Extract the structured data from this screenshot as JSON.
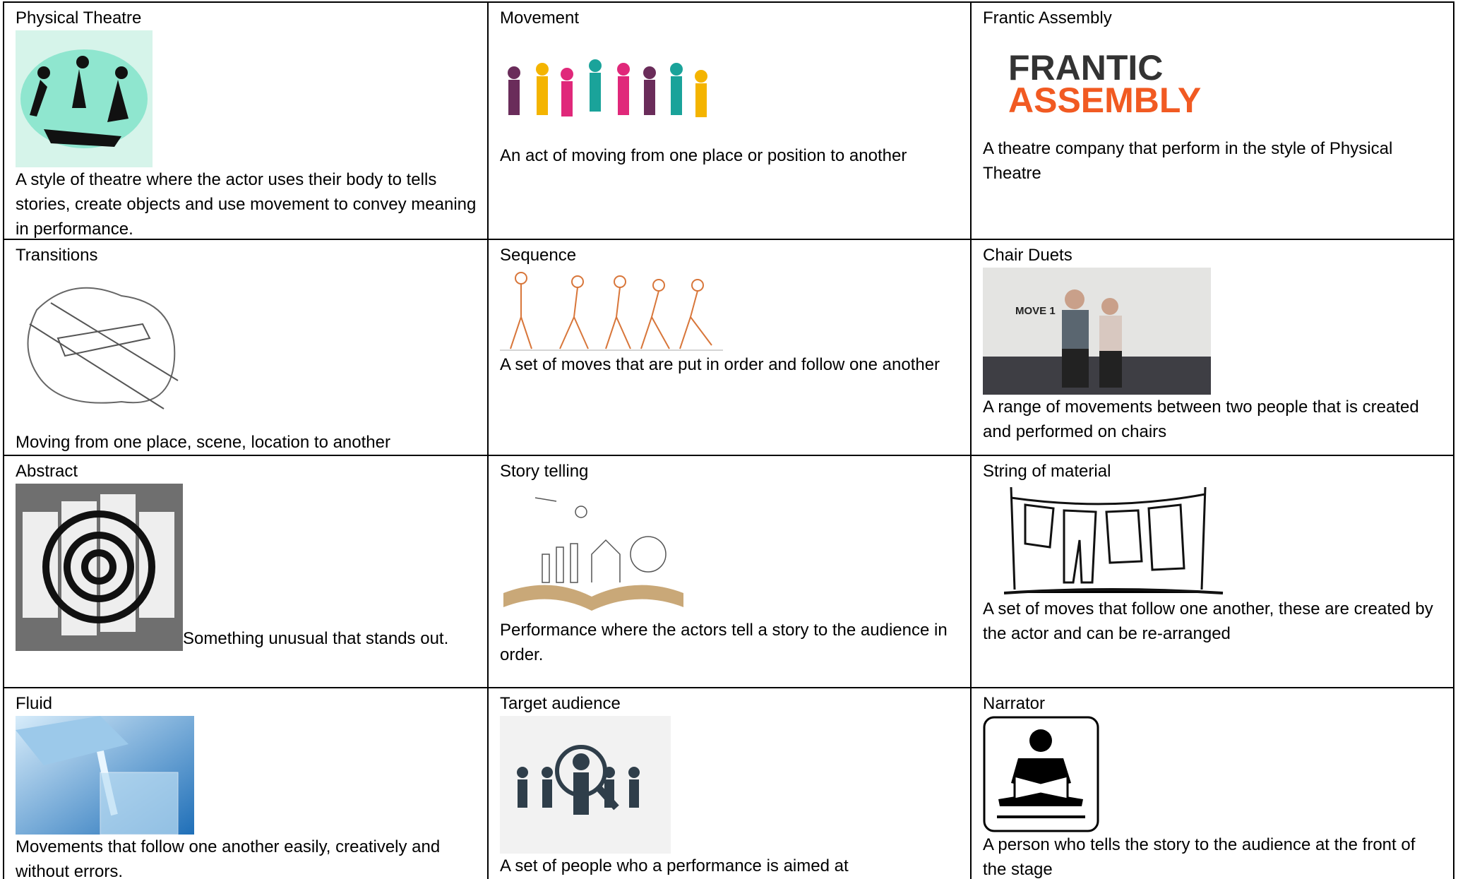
{
  "table": {
    "rows": [
      [
        {
          "term": "Physical Theatre",
          "definition": "A style of theatre where the actor uses their body to tells stories, create objects and use movement to convey meaning in performance."
        },
        {
          "term": "Movement",
          "definition": "An act of moving from one place or position to another"
        },
        {
          "term": "Frantic Assembly",
          "definition": "A theatre company that perform in the style of Physical Theatre",
          "image_text": [
            "FRANTIC",
            "ASSEMBLY"
          ]
        }
      ],
      [
        {
          "term": "Transitions",
          "definition": "Moving from one place, scene, location to another"
        },
        {
          "term": "Sequence",
          "definition": "A set of moves that are put in order and follow one another"
        },
        {
          "term": "Chair Duets",
          "definition": "A range of movements between two people that is created and performed on chairs",
          "image_text": [
            "MOVE 1"
          ]
        }
      ],
      [
        {
          "term": "Abstract",
          "definition": "Something unusual that stands out."
        },
        {
          "term": "Story telling",
          "definition": "Performance where the actors tell a story to the audience in order."
        },
        {
          "term": "String of material",
          "definition": "A set of moves that follow one another, these are created by the actor and can be re-arranged"
        }
      ],
      [
        {
          "term": "Fluid",
          "definition": "Movements that follow one another easily, creatively and without errors."
        },
        {
          "term": "Target audience",
          "definition": "A set of people who a performance is aimed at"
        },
        {
          "term": "Narrator",
          "definition": "A person who tells the story to the audience at the front of the stage"
        }
      ]
    ]
  }
}
